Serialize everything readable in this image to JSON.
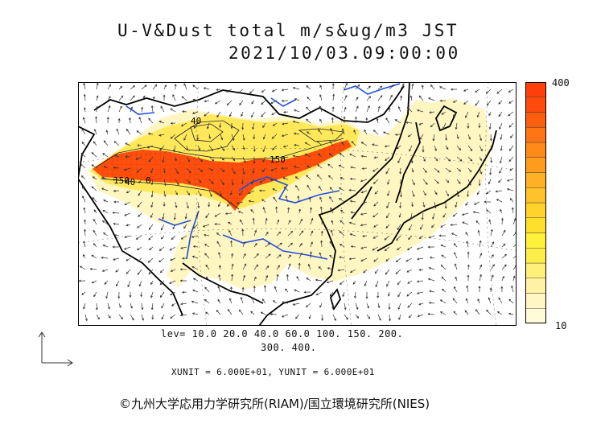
{
  "title": {
    "line1": "U-V&Dust total m/s&ug/m3 JST",
    "line2": "2021/10/03.09:00:00"
  },
  "map_labels": [
    "40",
    "150",
    "150",
    "40",
    "0"
  ],
  "colorbar": {
    "max_label": "400",
    "min_label": "10",
    "colors": [
      "#fffbd8",
      "#fff6c4",
      "#fff2a4",
      "#fff07a",
      "#ffee4a",
      "#fff03a",
      "#ffdf2c",
      "#ffd22c",
      "#ffc22a",
      "#ffb024",
      "#ff9c1e",
      "#ff8a18",
      "#ff7414",
      "#ff5e10",
      "#ff4a0c",
      "#ff3f0a"
    ]
  },
  "levels": {
    "line1": "lev= 10.0 20.0 40.0 60.0 100. 150. 200.",
    "line2": "300. 400."
  },
  "units": "XUNIT = 6.000E+01, YUNIT = 6.000E+01",
  "credit": "©九州大学応用力学研究所(RIAM)/国立環境研究所(NIES)",
  "map_colors": {
    "land": "#000000",
    "rivers": "#1e4fe0",
    "heavy_dust": "#ff4f0f",
    "medium_dust": "#ffe85a",
    "light_dust": "#fff6c2"
  }
}
